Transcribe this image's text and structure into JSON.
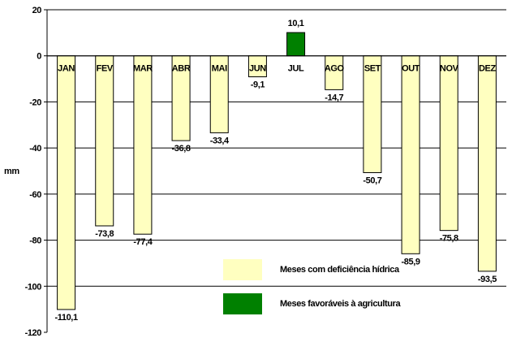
{
  "chart_data": {
    "type": "bar",
    "categories": [
      "JAN",
      "FEV",
      "MAR",
      "ABR",
      "MAI",
      "JUN",
      "JUL",
      "AGO",
      "SET",
      "OUT",
      "NOV",
      "DEZ"
    ],
    "values": [
      -110.1,
      -73.8,
      -77.4,
      -36.8,
      -33.4,
      -9.1,
      10.1,
      -14.7,
      -50.7,
      -85.9,
      -75.8,
      -93.5
    ],
    "value_labels": [
      "-110,1",
      "-73,8",
      "-77,4",
      "-36,8",
      "-33,4",
      "-9,1",
      "10,1",
      "-14,7",
      "-50,7",
      "-85,9",
      "-75,8",
      "-93,5"
    ],
    "ylabel": "mm",
    "ylim": [
      -120,
      20
    ],
    "yticks": [
      20,
      0,
      -20,
      -40,
      -60,
      -80,
      -100,
      -120
    ],
    "grid": true,
    "colors": {
      "deficit": "#FFFFC0",
      "favorable": "#008000",
      "bar_outline": "#000000"
    },
    "legend": {
      "position": "bottom-right",
      "entries": [
        {
          "label": "Meses com deficiência hídrica",
          "color": "#FFFFC0"
        },
        {
          "label": "Meses favoráveis à agricultura",
          "color": "#008000"
        }
      ]
    }
  }
}
